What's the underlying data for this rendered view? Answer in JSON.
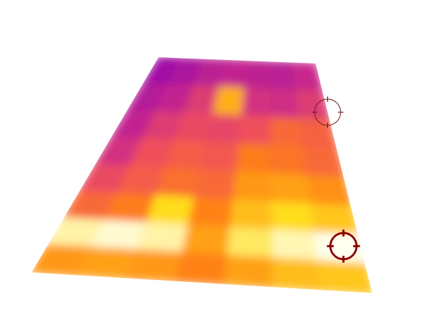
{
  "heatmap": {
    "rows": 8,
    "cols": 7,
    "values": [
      [
        0.05,
        0.1,
        0.18,
        0.22,
        0.2,
        0.18,
        0.25
      ],
      [
        0.15,
        0.22,
        0.35,
        0.75,
        0.3,
        0.28,
        0.35
      ],
      [
        0.22,
        0.35,
        0.42,
        0.4,
        0.45,
        0.55,
        0.52
      ],
      [
        0.3,
        0.45,
        0.5,
        0.48,
        0.62,
        0.6,
        0.55
      ],
      [
        0.42,
        0.5,
        0.58,
        0.55,
        0.7,
        0.72,
        0.68
      ],
      [
        0.55,
        0.62,
        0.85,
        0.65,
        0.78,
        0.85,
        0.8
      ],
      [
        0.95,
        0.98,
        0.95,
        0.72,
        0.9,
        0.96,
        1.0
      ],
      [
        0.7,
        0.72,
        0.7,
        0.65,
        0.72,
        0.78,
        0.8
      ]
    ]
  },
  "colors": {
    "background": "#ffffff",
    "marker_outline": "#8b0000"
  },
  "markers": [
    {
      "name": "crosshair-marker-secondary",
      "row": 1.7,
      "col": 7.0,
      "style": "light"
    },
    {
      "name": "crosshair-marker-primary",
      "row": 6.4,
      "col": 6.6,
      "style": "dark"
    }
  ]
}
